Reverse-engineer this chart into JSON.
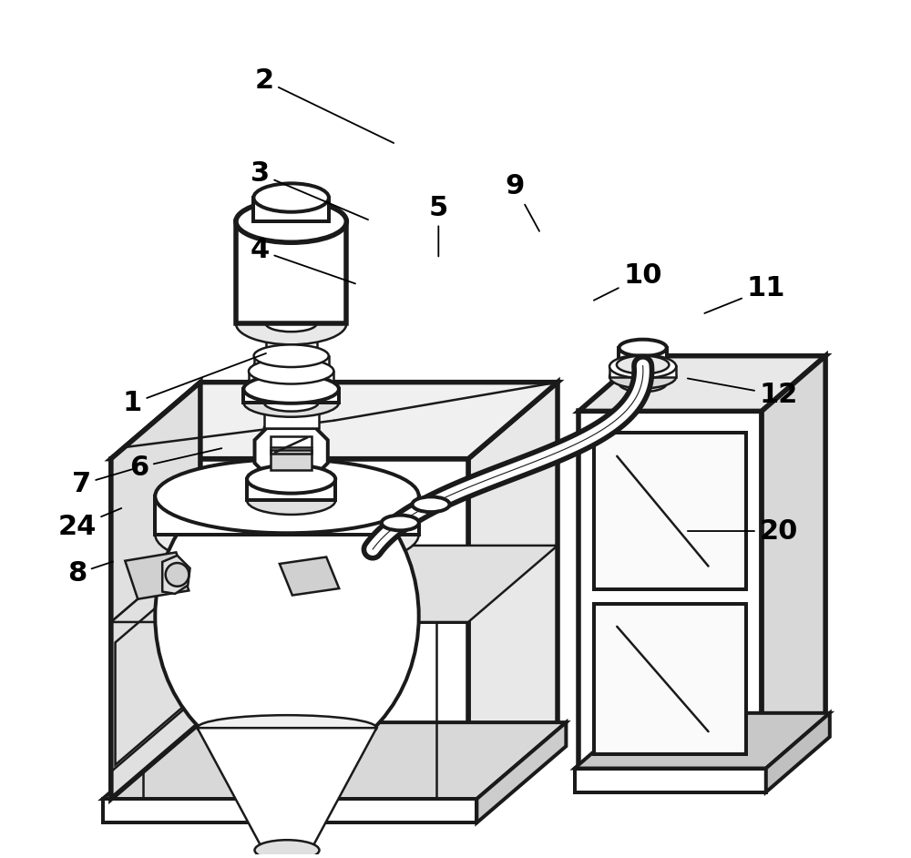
{
  "background_color": "#ffffff",
  "line_color": "#1a1a1a",
  "line_width": 1.8,
  "label_fontsize": 22,
  "label_color": "#000000",
  "annotations": [
    [
      "2",
      [
        0.275,
        0.91
      ],
      [
        0.43,
        0.835
      ]
    ],
    [
      "3",
      [
        0.27,
        0.8
      ],
      [
        0.4,
        0.745
      ]
    ],
    [
      "4",
      [
        0.27,
        0.71
      ],
      [
        0.385,
        0.67
      ]
    ],
    [
      "1",
      [
        0.12,
        0.53
      ],
      [
        0.28,
        0.59
      ]
    ],
    [
      "6",
      [
        0.128,
        0.455
      ],
      [
        0.228,
        0.478
      ]
    ],
    [
      "5",
      [
        0.48,
        0.76
      ],
      [
        0.48,
        0.7
      ]
    ],
    [
      "9",
      [
        0.57,
        0.785
      ],
      [
        0.6,
        0.73
      ]
    ],
    [
      "7",
      [
        0.06,
        0.435
      ],
      [
        0.128,
        0.455
      ]
    ],
    [
      "24",
      [
        0.055,
        0.385
      ],
      [
        0.11,
        0.408
      ]
    ],
    [
      "8",
      [
        0.055,
        0.33
      ],
      [
        0.1,
        0.345
      ]
    ],
    [
      "10",
      [
        0.72,
        0.68
      ],
      [
        0.66,
        0.65
      ]
    ],
    [
      "11",
      [
        0.865,
        0.665
      ],
      [
        0.79,
        0.635
      ]
    ],
    [
      "12",
      [
        0.88,
        0.54
      ],
      [
        0.77,
        0.56
      ]
    ],
    [
      "20",
      [
        0.88,
        0.38
      ],
      [
        0.77,
        0.38
      ]
    ]
  ]
}
